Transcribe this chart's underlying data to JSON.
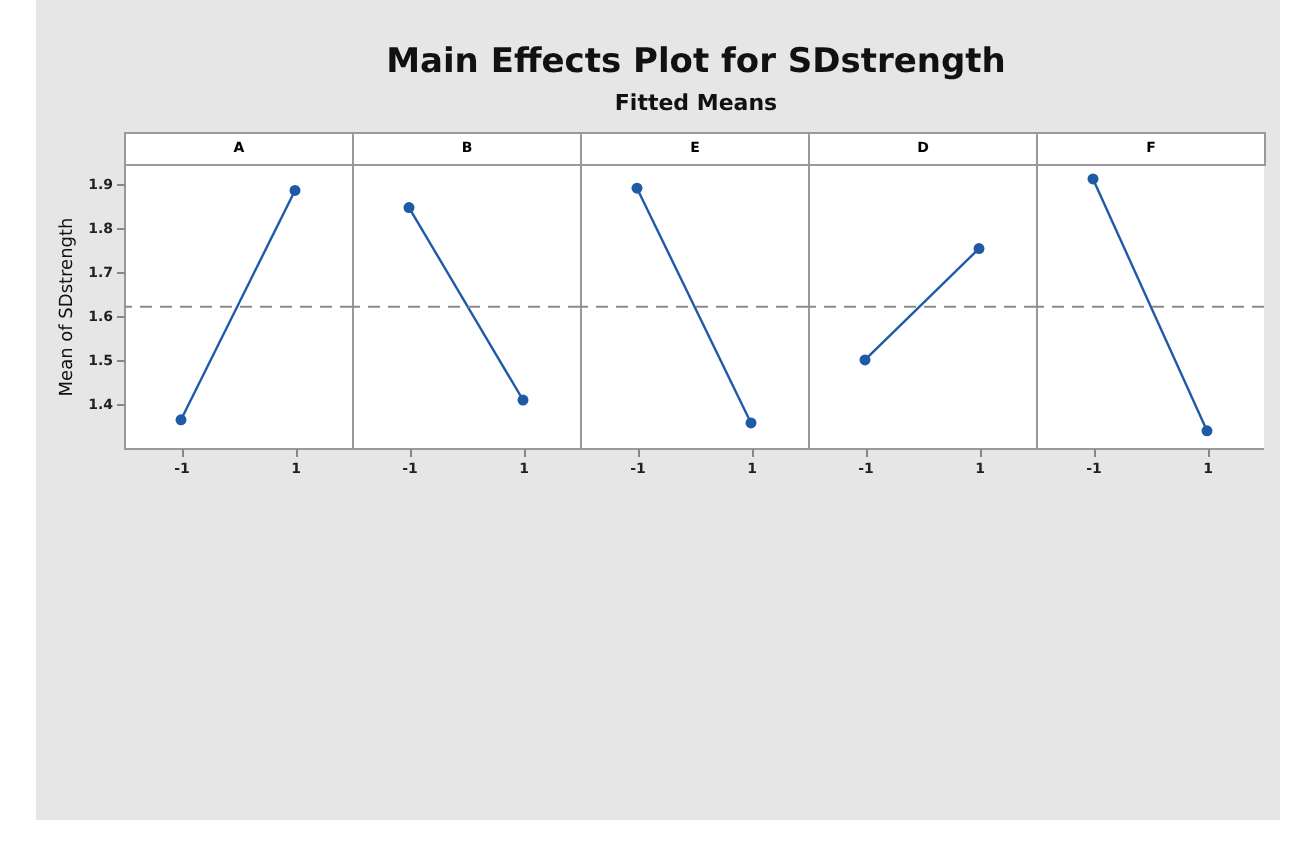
{
  "chart_data": [
    {
      "type": "other",
      "title": "Main Effects Plot for SDstrength",
      "subtitle": "Fitted Means"
    },
    {
      "type": "line",
      "title": "A",
      "ylabel": "Mean of SDstrength",
      "categories": [
        "-1",
        "1"
      ],
      "values": [
        1.364,
        1.885
      ],
      "color": "#1f5aa6",
      "marker": "circle",
      "ylim": [
        1.3,
        1.945
      ],
      "yticks": [
        1.4,
        1.5,
        1.6,
        1.7,
        1.8,
        1.9
      ],
      "ref_lines": [
        {
          "axis": "y",
          "value": 1.621,
          "color": "#8c8c8c",
          "line_style": "dashed"
        }
      ]
    },
    {
      "type": "line",
      "title": "B",
      "categories": [
        "-1",
        "1"
      ],
      "values": [
        1.846,
        1.409
      ],
      "color": "#1f5aa6",
      "marker": "circle",
      "ylim": [
        1.3,
        1.945
      ],
      "tick_labels": "x",
      "ref_lines": [
        {
          "axis": "y",
          "value": 1.621,
          "color": "#8c8c8c",
          "line_style": "dashed"
        }
      ]
    },
    {
      "type": "line",
      "title": "E",
      "categories": [
        "-1",
        "1"
      ],
      "values": [
        1.89,
        1.357
      ],
      "color": "#1f5aa6",
      "marker": "circle",
      "ylim": [
        1.3,
        1.945
      ],
      "tick_labels": "x",
      "ref_lines": [
        {
          "axis": "y",
          "value": 1.621,
          "color": "#8c8c8c",
          "line_style": "dashed"
        }
      ]
    },
    {
      "type": "line",
      "title": "D",
      "categories": [
        "-1",
        "1"
      ],
      "values": [
        1.5,
        1.753
      ],
      "color": "#1f5aa6",
      "marker": "circle",
      "ylim": [
        1.3,
        1.945
      ],
      "tick_labels": "x",
      "ref_lines": [
        {
          "axis": "y",
          "value": 1.621,
          "color": "#8c8c8c",
          "line_style": "dashed"
        }
      ]
    },
    {
      "type": "line",
      "title": "F",
      "categories": [
        "-1",
        "1"
      ],
      "values": [
        1.911,
        1.339
      ],
      "color": "#1f5aa6",
      "marker": "circle",
      "ylim": [
        1.3,
        1.945
      ],
      "tick_labels": "x",
      "ref_lines": [
        {
          "axis": "y",
          "value": 1.621,
          "color": "#8c8c8c",
          "line_style": "dashed"
        }
      ]
    }
  ]
}
